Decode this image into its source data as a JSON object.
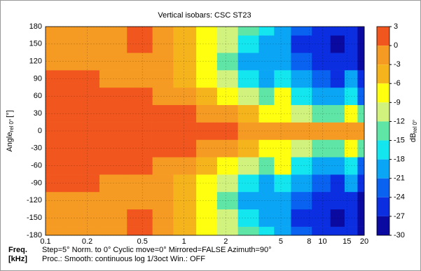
{
  "chart_data": {
    "type": "heatmap",
    "title": "Vertical isobars: CSC  ST23",
    "y_label": {
      "main": "Angle",
      "sub": "rel 0°",
      "unit": "[°]"
    },
    "colorbar_label": {
      "main": "dB",
      "sub": "rel 0°"
    },
    "x_label": {
      "line1": "Freq.",
      "line2": "[kHz]"
    },
    "footer": {
      "line1": "Step=5°   Norm. to 0°   Cyclic move=0°   Mirrored=FALSE   Azimuth=90°",
      "line2": "Proc.: Smooth: continuous log 1/3oct    Win.: OFF"
    },
    "x": [
      0.1,
      0.2,
      0.3,
      0.5,
      0.7,
      1,
      1.5,
      2,
      3,
      4,
      5,
      7,
      10,
      13,
      16,
      20
    ],
    "y": [
      -180,
      -150,
      -120,
      -90,
      -60,
      -30,
      0,
      30,
      60,
      90,
      120,
      150,
      180
    ],
    "z": [
      [
        -2,
        -1,
        -1,
        0.5,
        -2,
        -4,
        -6,
        -10,
        -13,
        -16,
        -18,
        -22,
        -24,
        -26,
        -26,
        -28
      ],
      [
        -2,
        -1,
        -1,
        0.5,
        -2,
        -4,
        -7,
        -11,
        -15,
        -18,
        -20,
        -24,
        -26,
        -27,
        -26,
        -29
      ],
      [
        -2,
        -1,
        -1,
        -1,
        -2,
        -4,
        -8,
        -12,
        -18,
        -20,
        -20,
        -22,
        -25,
        -25,
        -24,
        -28
      ],
      [
        0.5,
        0.5,
        -1,
        -1,
        -2,
        -3,
        -7,
        -10,
        -15,
        -18,
        -16,
        -20,
        -22,
        -24,
        -20,
        -26
      ],
      [
        0.5,
        0.5,
        0.5,
        0.5,
        -1,
        -1,
        -4,
        -7,
        -10,
        -12,
        -8,
        -16,
        -19,
        -20,
        -15,
        -22
      ],
      [
        0.5,
        0.5,
        0.5,
        0.5,
        0.5,
        0.5,
        -1,
        -2,
        -4,
        -6,
        -7,
        -10,
        -12,
        -12,
        -8,
        -14
      ],
      [
        0.5,
        0.5,
        0.5,
        0.5,
        0.5,
        0.5,
        0.5,
        0.5,
        0,
        0,
        0,
        0,
        0,
        0,
        0,
        0
      ],
      [
        0.5,
        0.5,
        0.5,
        0.5,
        0.5,
        0.5,
        -1,
        -2,
        -4,
        -6,
        -7,
        -10,
        -12,
        -12,
        -8,
        -14
      ],
      [
        0.5,
        0.5,
        0.5,
        0.5,
        -1,
        -1,
        -4,
        -7,
        -10,
        -12,
        -8,
        -16,
        -19,
        -20,
        -15,
        -22
      ],
      [
        0.5,
        0.5,
        -1,
        -1,
        -2,
        -3,
        -7,
        -10,
        -15,
        -18,
        -16,
        -20,
        -22,
        -24,
        -20,
        -26
      ],
      [
        -2,
        -1,
        -1,
        -1,
        -2,
        -4,
        -8,
        -12,
        -18,
        -20,
        -20,
        -22,
        -25,
        -25,
        -24,
        -28
      ],
      [
        -2,
        -1,
        -1,
        0.5,
        -2,
        -4,
        -7,
        -11,
        -15,
        -18,
        -20,
        -24,
        -26,
        -27,
        -26,
        -29
      ],
      [
        -2,
        -1,
        -1,
        0.5,
        -2,
        -4,
        -6,
        -10,
        -13,
        -16,
        -18,
        -22,
        -24,
        -26,
        -26,
        -28
      ]
    ],
    "xlim": [
      0.1,
      20
    ],
    "xscale": "log",
    "xticks": [
      0.1,
      0.2,
      0.5,
      1,
      2,
      5,
      8,
      10,
      15,
      20
    ],
    "ylim": [
      -180,
      180
    ],
    "yticks": [
      -180,
      -150,
      -120,
      -90,
      -60,
      -30,
      0,
      30,
      60,
      90,
      120,
      150,
      180
    ],
    "grid": true,
    "levels": [
      3,
      0,
      -3,
      -6,
      -9,
      -12,
      -15,
      -18,
      -21,
      -24,
      -27,
      -30
    ],
    "colors": [
      "#f0561e",
      "#f59a22",
      "#f6b41c",
      "#ffff10",
      "#d2f27e",
      "#5fe6a6",
      "#14e6f0",
      "#0aa6f5",
      "#0a62f0",
      "#0a2ee0",
      "#0a0aa0"
    ]
  }
}
